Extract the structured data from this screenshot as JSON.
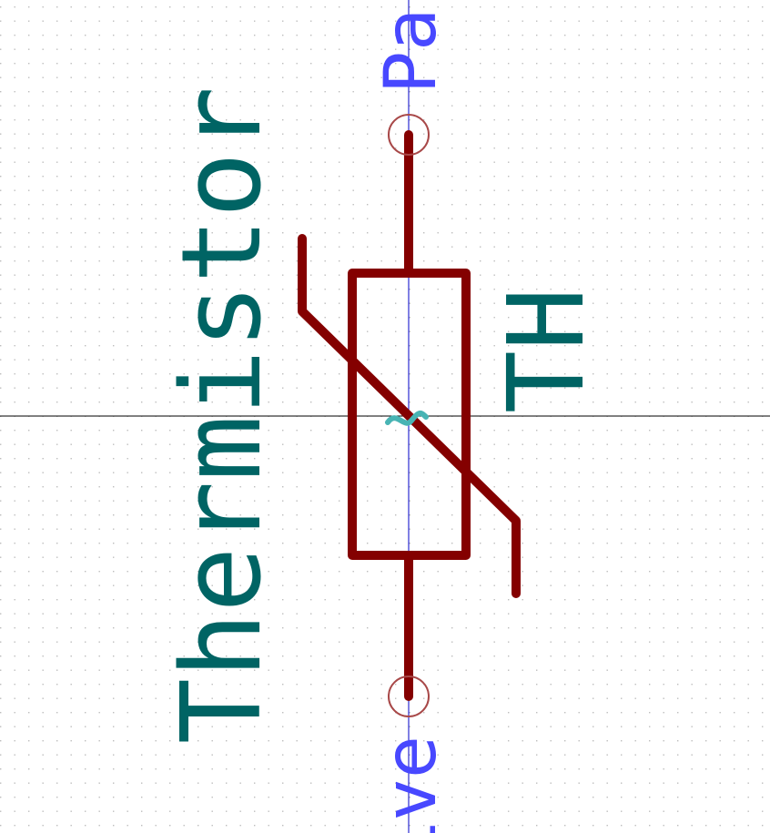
{
  "symbol": {
    "value": "Thermistor",
    "reference": "TH",
    "pin_top_name": "Pa",
    "pin_bottom_name": "ive",
    "colors": {
      "body": "#840000",
      "field_text": "#006464",
      "pin_text": "#4848ff",
      "pin_marker": "#a84848",
      "anchor": "#48b4b4",
      "grid_dot": "#bdbdbd",
      "axis": "#000000",
      "axis_vertical": "#0000c8",
      "background": "#ffffff"
    }
  }
}
